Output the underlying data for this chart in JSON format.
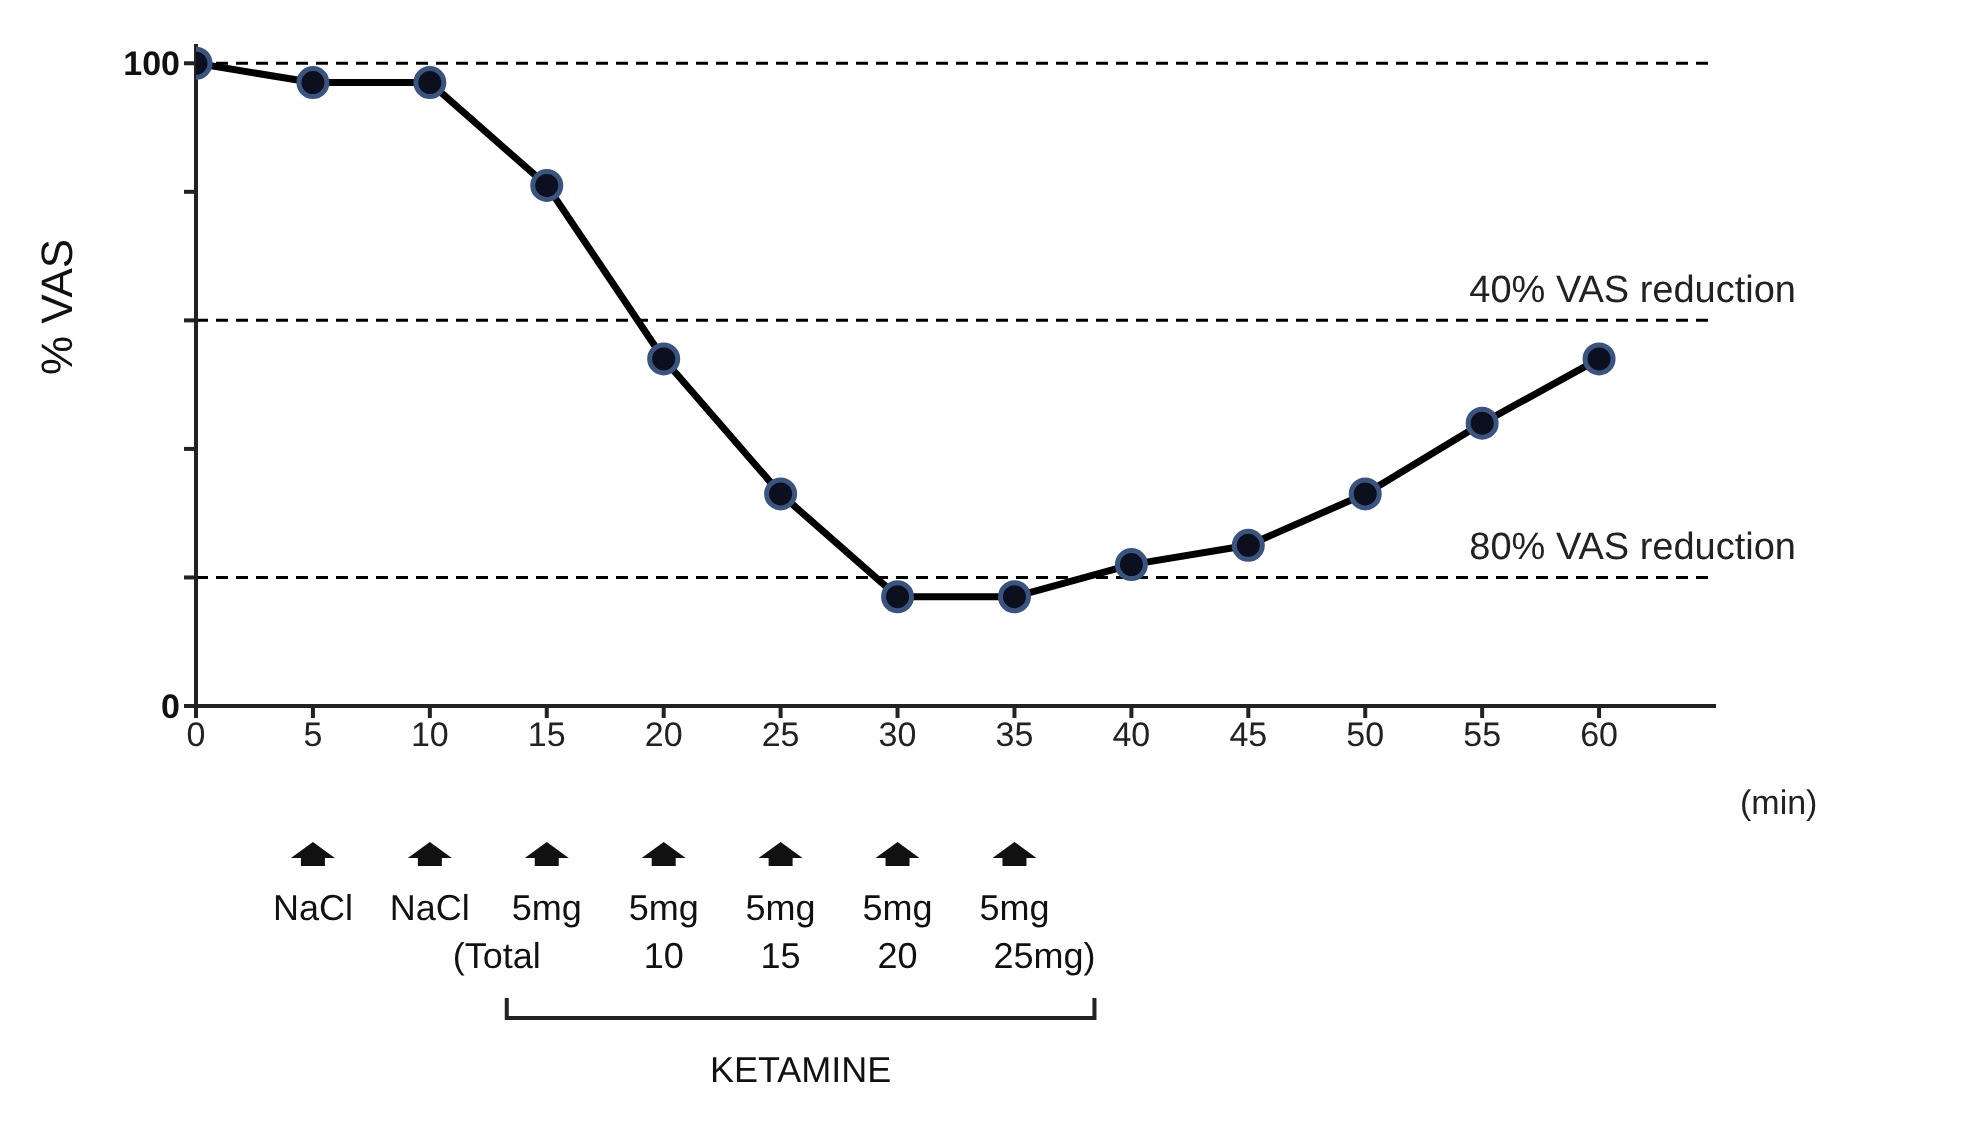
{
  "chart_data": {
    "type": "line",
    "ylabel": "% VAS",
    "xlabel": "(min)",
    "x": [
      0,
      5,
      10,
      15,
      20,
      25,
      30,
      35,
      40,
      45,
      50,
      55,
      60
    ],
    "series": [
      {
        "color": "#000000",
        "values": [
          100,
          97,
          97,
          81,
          54,
          33,
          17,
          17,
          22,
          25,
          33,
          44,
          54
        ]
      }
    ],
    "xlim": [
      0,
      65
    ],
    "xticks": [
      0,
      5,
      10,
      15,
      20,
      25,
      30,
      35,
      40,
      45,
      50,
      55,
      60
    ],
    "ylim": [
      0,
      103
    ],
    "yticks": [
      0,
      {
        "value": 20,
        "label": null
      },
      {
        "value": 40,
        "label": null
      },
      {
        "value": 60,
        "label": null
      },
      {
        "value": 80,
        "label": null
      },
      100
    ],
    "ref_lines": [
      {
        "axis": "y",
        "value": 100,
        "label": null,
        "line_style": "dashed"
      },
      {
        "axis": "y",
        "value": 60,
        "label": "40% VAS reduction",
        "line_style": "dashed"
      },
      {
        "axis": "y",
        "value": 20,
        "label": "80% VAS reduction",
        "line_style": "dashed"
      }
    ],
    "annotations": [
      "NaCl",
      "NaCl",
      "5mg",
      "5mg",
      "5mg",
      "5mg",
      "5mg",
      "(Total",
      "10",
      "15",
      "20",
      "25mg)",
      "KETAMINE"
    ],
    "marker": "circle",
    "line_style": "solid"
  }
}
